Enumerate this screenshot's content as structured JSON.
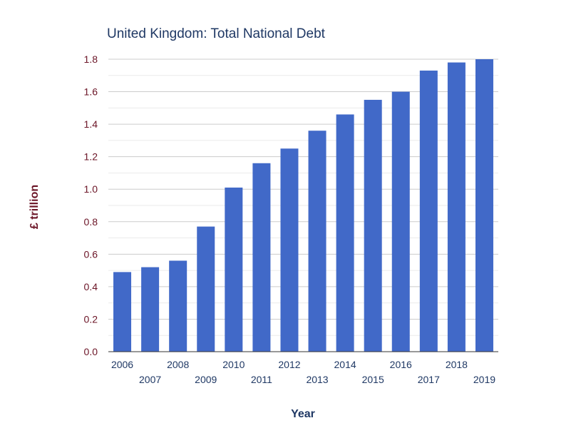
{
  "chart_data": {
    "type": "bar",
    "title": "United Kingdom: Total National Debt",
    "xlabel": "Year",
    "ylabel": "£ trillion",
    "categories": [
      "2006",
      "2007",
      "2008",
      "2009",
      "2010",
      "2011",
      "2012",
      "2013",
      "2014",
      "2015",
      "2016",
      "2017",
      "2018",
      "2019"
    ],
    "values": [
      0.49,
      0.52,
      0.56,
      0.77,
      1.01,
      1.16,
      1.25,
      1.36,
      1.46,
      1.55,
      1.6,
      1.73,
      1.78,
      1.8
    ],
    "ylim": [
      0,
      1.8
    ],
    "yticks": [
      "0.0",
      "0.2",
      "0.4",
      "0.6",
      "0.8",
      "1.0",
      "1.2",
      "1.4",
      "1.6",
      "1.8"
    ],
    "grid": true,
    "legend": "none",
    "bar_color": "#4169c8"
  }
}
